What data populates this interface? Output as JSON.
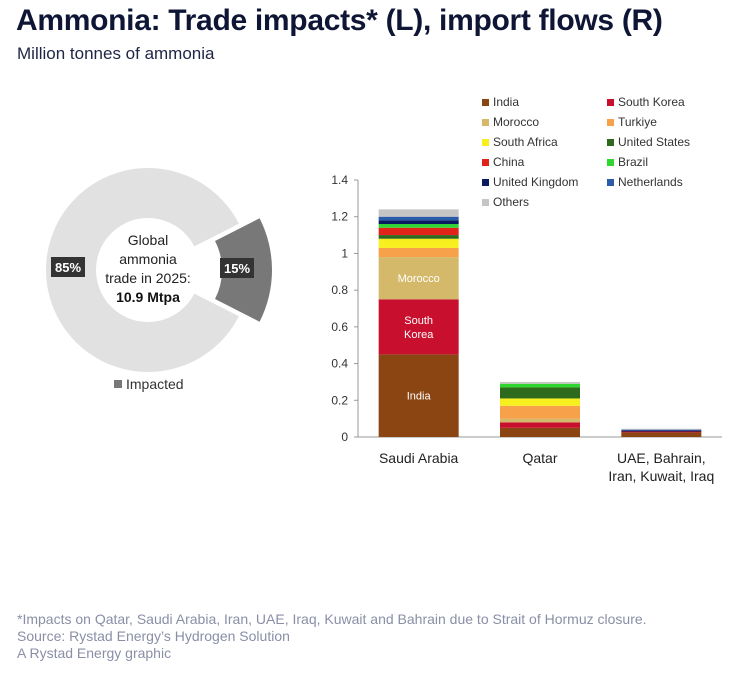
{
  "title": "Ammonia: Trade impacts* (L), import flows (R)",
  "subtitle": "Million tonnes of ammonia",
  "footer": {
    "note": "*Impacts on Qatar, Saudi Arabia, Iran, UAE, Iraq, Kuwait and Bahrain due to Strait of Hormuz closure.",
    "source": "Source: Rystad Energy’s Hydrogen Solution",
    "credit": "A Rystad Energy graphic"
  },
  "chart_data": [
    {
      "type": "pie",
      "center_text": [
        "Global",
        "ammonia",
        "trade in 2025:"
      ],
      "center_value": "10.9 Mtpa",
      "slices": [
        {
          "name": "",
          "value": 85,
          "label": "85%",
          "color": "#e1e1e1"
        },
        {
          "name": "Impacted",
          "value": 15,
          "label": "15%",
          "color": "#787878"
        }
      ],
      "legend": [
        "Impacted"
      ]
    },
    {
      "type": "bar",
      "stacked": true,
      "categories": [
        "Saudi Arabia",
        "Qatar",
        "UAE, Bahrain, Iran, Kuwait, Iraq"
      ],
      "category_lines": [
        [
          "Saudi Arabia"
        ],
        [
          "Qatar"
        ],
        [
          "UAE, Bahrain,",
          "Iran, Kuwait, Iraq"
        ]
      ],
      "ylim": [
        0,
        1.4
      ],
      "yticks": [
        "0",
        "0.2",
        "0.4",
        "0.6",
        "0.8",
        "1",
        "1.2",
        "1.4"
      ],
      "legend_position": "top",
      "series": [
        {
          "name": "India",
          "color": "#8b4513",
          "values": [
            0.45,
            0.05,
            0.025
          ],
          "label": "India"
        },
        {
          "name": "South Korea",
          "color": "#c8102e",
          "values": [
            0.3,
            0.03,
            0.005
          ],
          "label": "South Korea"
        },
        {
          "name": "Morocco",
          "color": "#d4b96a",
          "values": [
            0.23,
            0.02,
            0.0
          ],
          "label": "Morocco"
        },
        {
          "name": "Turkiye",
          "color": "#f7a24b",
          "values": [
            0.05,
            0.07,
            0.0
          ]
        },
        {
          "name": "South Africa",
          "color": "#f7f01e",
          "values": [
            0.05,
            0.04,
            0.0
          ]
        },
        {
          "name": "United States",
          "color": "#2d6a1e",
          "values": [
            0.02,
            0.06,
            0.0
          ]
        },
        {
          "name": "China",
          "color": "#e2231a",
          "values": [
            0.04,
            0.0,
            0.0
          ]
        },
        {
          "name": "Brazil",
          "color": "#2fd62f",
          "values": [
            0.02,
            0.02,
            0.0
          ]
        },
        {
          "name": "United Kingdom",
          "color": "#0a1a5e",
          "values": [
            0.02,
            0.0,
            0.005
          ]
        },
        {
          "name": "Netherlands",
          "color": "#2a5caa",
          "values": [
            0.02,
            0.0,
            0.005
          ]
        },
        {
          "name": "Others",
          "color": "#c5c5c5",
          "values": [
            0.04,
            0.01,
            0.005
          ]
        }
      ]
    }
  ]
}
